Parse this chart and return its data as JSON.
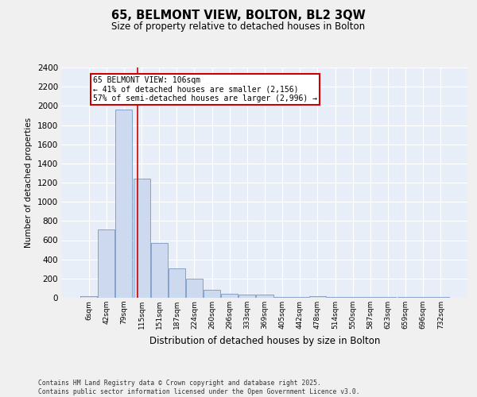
{
  "title1": "65, BELMONT VIEW, BOLTON, BL2 3QW",
  "title2": "Size of property relative to detached houses in Bolton",
  "xlabel": "Distribution of detached houses by size in Bolton",
  "ylabel": "Number of detached properties",
  "bar_color": "#ccd9ee",
  "bar_edge_color": "#6688bb",
  "background_color": "#e8eef8",
  "grid_color": "#ffffff",
  "annotation_text": "65 BELMONT VIEW: 106sqm\n← 41% of detached houses are smaller (2,156)\n57% of semi-detached houses are larger (2,996) →",
  "annotation_box_color": "#ffffff",
  "annotation_box_edge_color": "#cc0000",
  "vline_color": "#cc0000",
  "footer": "Contains HM Land Registry data © Crown copyright and database right 2025.\nContains public sector information licensed under the Open Government Licence v3.0.",
  "categories": [
    "6sqm",
    "42sqm",
    "79sqm",
    "115sqm",
    "151sqm",
    "187sqm",
    "224sqm",
    "260sqm",
    "296sqm",
    "333sqm",
    "369sqm",
    "405sqm",
    "442sqm",
    "478sqm",
    "514sqm",
    "550sqm",
    "587sqm",
    "623sqm",
    "659sqm",
    "696sqm",
    "732sqm"
  ],
  "values": [
    20,
    710,
    1960,
    1240,
    570,
    305,
    200,
    80,
    40,
    35,
    30,
    5,
    5,
    20,
    5,
    5,
    5,
    5,
    5,
    5,
    5
  ],
  "ylim": [
    0,
    2400
  ],
  "yticks": [
    0,
    200,
    400,
    600,
    800,
    1000,
    1200,
    1400,
    1600,
    1800,
    2000,
    2200,
    2400
  ],
  "fig_width": 6.0,
  "fig_height": 5.0,
  "fig_dpi": 100
}
